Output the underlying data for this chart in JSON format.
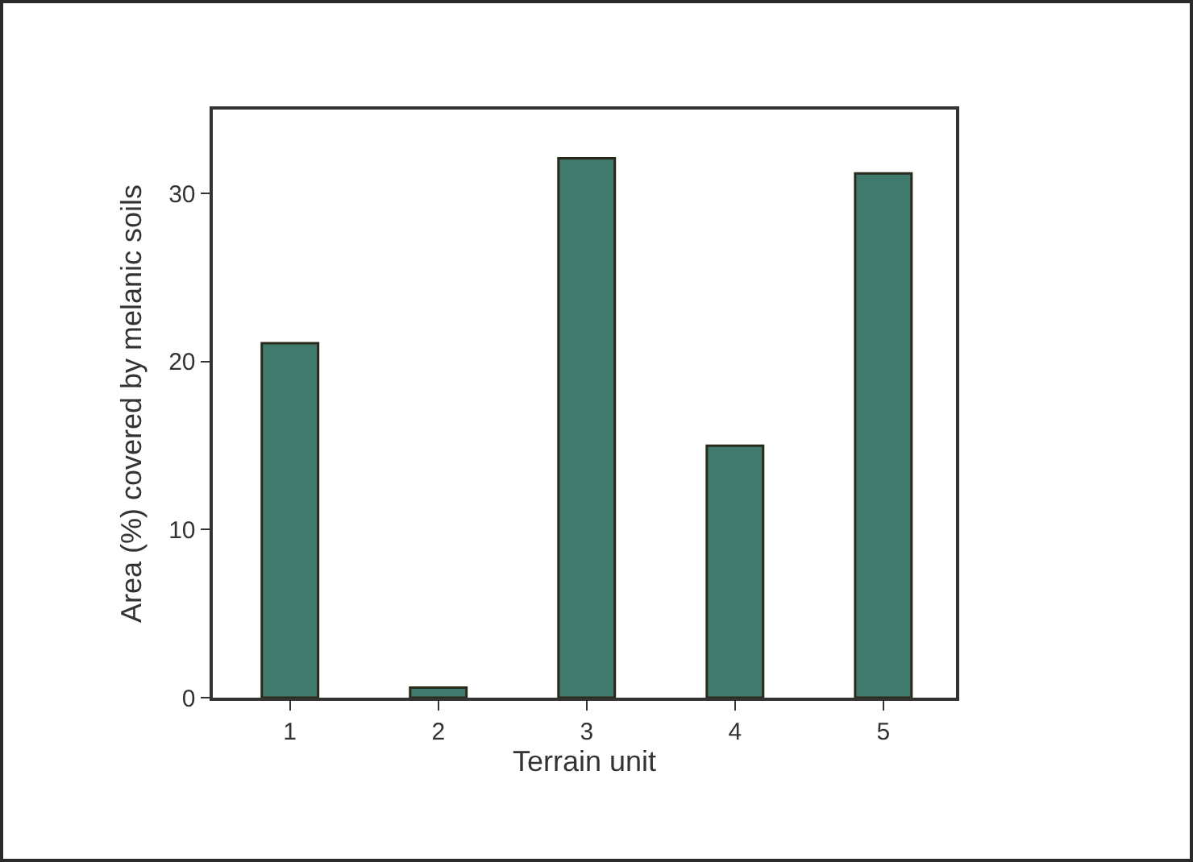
{
  "chart_data": {
    "type": "bar",
    "xlabel": "Terrain unit",
    "ylabel": "Area (%) covered by melanic soils",
    "categories": [
      "1",
      "2",
      "3",
      "4",
      "5"
    ],
    "values": [
      21.1,
      0.6,
      32.1,
      15.0,
      31.2
    ],
    "color": "#3f7a6c",
    "ylim": [
      0,
      35
    ],
    "yticks": [
      0,
      10,
      20,
      30
    ]
  }
}
